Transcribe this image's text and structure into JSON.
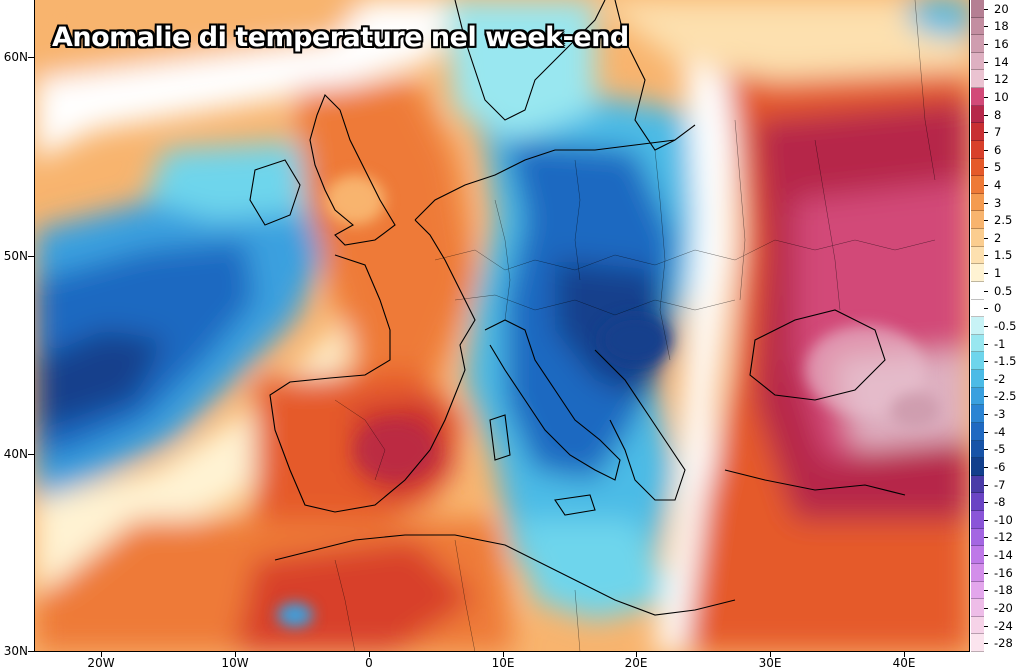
{
  "map": {
    "title": "Anomalie di temperature nel week-end",
    "latitude_labels": [
      "60N",
      "50N",
      "40N",
      "30N"
    ],
    "longitude_labels": [
      "20W",
      "10W",
      "0",
      "10E",
      "20E",
      "30E",
      "40E"
    ]
  },
  "legend": {
    "entries": [
      {
        "label": "20",
        "color": "#b57f93"
      },
      {
        "label": "18",
        "color": "#c38ea1"
      },
      {
        "label": "16",
        "color": "#cf9daf"
      },
      {
        "label": "14",
        "color": "#deb0c1"
      },
      {
        "label": "12",
        "color": "#eac3d1"
      },
      {
        "label": "10",
        "color": "#d24a78"
      },
      {
        "label": "8",
        "color": "#b6284a"
      },
      {
        "label": "7",
        "color": "#c82f33"
      },
      {
        "label": "6",
        "color": "#d8402b"
      },
      {
        "label": "5",
        "color": "#e55a2a"
      },
      {
        "label": "4",
        "color": "#ee7a37"
      },
      {
        "label": "3",
        "color": "#f49b50"
      },
      {
        "label": "2.5",
        "color": "#f8b46e"
      },
      {
        "label": "2",
        "color": "#fbcd8f"
      },
      {
        "label": "1.5",
        "color": "#fde0af"
      },
      {
        "label": "1",
        "color": "#fff3d3"
      },
      {
        "label": "0.5",
        "color": "#ffffff"
      },
      {
        "label": "0",
        "color": "#ffffff"
      },
      {
        "label": "-0.5",
        "color": "#c8f3f6"
      },
      {
        "label": "-1",
        "color": "#99e7f0"
      },
      {
        "label": "-1.5",
        "color": "#6ed5ec"
      },
      {
        "label": "-2",
        "color": "#4cbbe6"
      },
      {
        "label": "-2.5",
        "color": "#3aa0df"
      },
      {
        "label": "-3",
        "color": "#2b84d3"
      },
      {
        "label": "-4",
        "color": "#1f69c1"
      },
      {
        "label": "-5",
        "color": "#1753a7"
      },
      {
        "label": "-6",
        "color": "#123f8c"
      },
      {
        "label": "-7",
        "color": "#4a3ba8"
      },
      {
        "label": "-8",
        "color": "#6a44c4"
      },
      {
        "label": "-10",
        "color": "#8a55d8"
      },
      {
        "label": "-12",
        "color": "#a466e2"
      },
      {
        "label": "-14",
        "color": "#be78e8"
      },
      {
        "label": "-16",
        "color": "#d38eea"
      },
      {
        "label": "-18",
        "color": "#e3a6ec"
      },
      {
        "label": "-20",
        "color": "#eebde8"
      },
      {
        "label": "-24",
        "color": "#f6d3e8"
      },
      {
        "label": "-28",
        "color": "#fbe4ee"
      }
    ]
  }
}
